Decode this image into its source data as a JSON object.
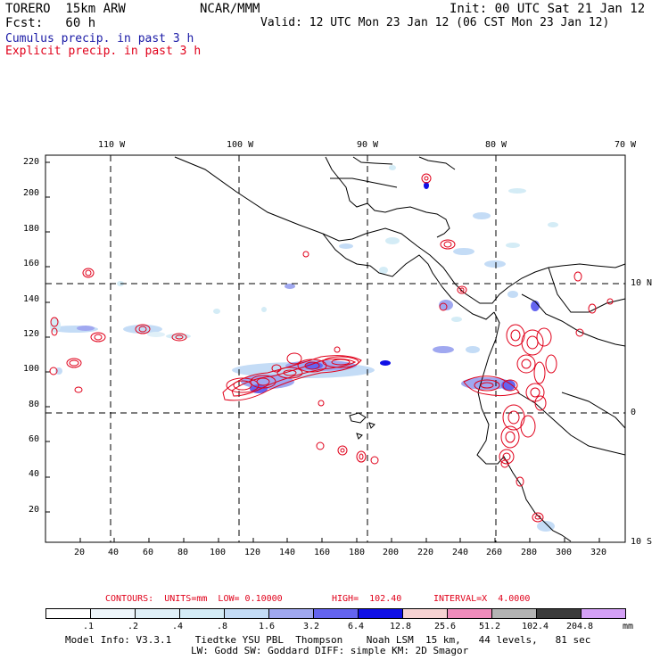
{
  "header": {
    "model": "TORERO  15km ARW",
    "center": "NCAR/MMM",
    "init": "Init: 00 UTC Sat 21 Jan 12",
    "fcst": "Fcst:   60 h",
    "valid": "Valid: 12 UTC Mon 23 Jan 12 (06 CST Mon 23 Jan 12)",
    "cumulus_line": "Cumulus precip. in past 3 h",
    "explicit_line": "Explicit precip. in past 3 h"
  },
  "map": {
    "lon_labels": [
      "110 W",
      "100 W",
      "90 W",
      "80 W",
      "70 W"
    ],
    "lat_labels": [
      "10 N",
      "0",
      "10 S"
    ],
    "y_ticks": [
      "220",
      "200",
      "180",
      "160",
      "140",
      "120",
      "100",
      "80",
      "60",
      "40",
      "20"
    ],
    "x_ticks": [
      "20",
      "40",
      "60",
      "80",
      "100",
      "120",
      "140",
      "160",
      "180",
      "200",
      "220",
      "240",
      "260",
      "280",
      "300",
      "320"
    ]
  },
  "contours_line": {
    "label": "CONTOURS:  UNITS=mm  LOW= 0.10000",
    "high": "HIGH=  102.40",
    "interval": "INTERVAL=X  4.0000"
  },
  "colorbar": {
    "labels": [
      ".1",
      ".2",
      ".4",
      ".8",
      "1.6",
      "3.2",
      "6.4",
      "12.8",
      "25.6",
      "51.2",
      "102.4",
      "204.8"
    ],
    "unit": "mm",
    "colors": [
      "#ffffff",
      "#eef6fb",
      "#e0f0f8",
      "#d4ecf6",
      "#c4dcf6",
      "#a0a8f0",
      "#6464f0",
      "#1010e6",
      "#f6d2d2",
      "#f08cbc",
      "#b4b4b4",
      "#3c3c3c",
      "#d4a0f6"
    ]
  },
  "footer": {
    "line1": "Model Info: V3.3.1    Tiedtke YSU PBL  Thompson    Noah LSM  15 km,   44 levels,   81 sec",
    "line2": "LW: Godd SW: Goddard DIFF: simple KM: 2D Smagor"
  }
}
